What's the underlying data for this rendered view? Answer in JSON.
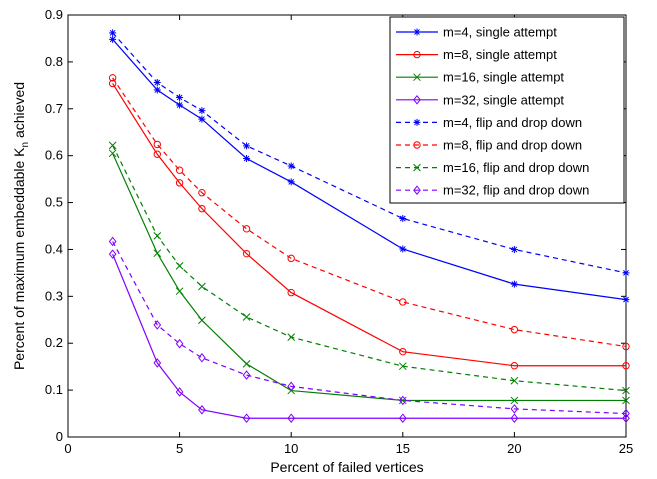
{
  "chart_data": {
    "type": "line",
    "xlabel": "Percent of failed vertices",
    "ylabel": "Percent of maximum embeddable K",
    "ylabel_subscript": "n",
    "ylabel_suffix": " achieved",
    "xlim": [
      0,
      25
    ],
    "ylim": [
      0,
      0.9
    ],
    "xticks": [
      0,
      5,
      10,
      15,
      20,
      25
    ],
    "yticks": [
      0,
      0.1,
      0.2,
      0.3,
      0.4,
      0.5,
      0.6,
      0.7,
      0.8,
      0.9
    ],
    "grid": false,
    "legend_position": "top-right",
    "x": [
      2,
      4,
      5,
      6,
      8,
      10,
      15,
      20,
      25
    ],
    "series": [
      {
        "name": "m=4, single attempt",
        "color": "#0000ff",
        "dash": "solid",
        "marker": "star",
        "values": [
          0.848,
          0.74,
          0.708,
          0.678,
          0.594,
          0.544,
          0.401,
          0.326,
          0.293
        ]
      },
      {
        "name": "m=8, single attempt",
        "color": "#ff0000",
        "dash": "solid",
        "marker": "circle",
        "values": [
          0.754,
          0.603,
          0.542,
          0.487,
          0.391,
          0.308,
          0.182,
          0.152,
          0.152
        ]
      },
      {
        "name": "m=16, single attempt",
        "color": "#008000",
        "dash": "solid",
        "marker": "x",
        "values": [
          0.605,
          0.392,
          0.311,
          0.249,
          0.156,
          0.099,
          0.078,
          0.078,
          0.078
        ]
      },
      {
        "name": "m=32, single attempt",
        "color": "#8000ff",
        "dash": "solid",
        "marker": "diamond",
        "values": [
          0.39,
          0.158,
          0.096,
          0.058,
          0.04,
          0.04,
          0.04,
          0.04,
          0.04
        ]
      },
      {
        "name": "m=4, flip and drop down",
        "color": "#0000ff",
        "dash": "dashed",
        "marker": "star",
        "values": [
          0.862,
          0.756,
          0.724,
          0.696,
          0.621,
          0.578,
          0.466,
          0.4,
          0.35
        ]
      },
      {
        "name": "m=8, flip and drop down",
        "color": "#ff0000",
        "dash": "dashed",
        "marker": "circle",
        "values": [
          0.766,
          0.624,
          0.569,
          0.521,
          0.444,
          0.381,
          0.288,
          0.229,
          0.193
        ]
      },
      {
        "name": "m=16, flip and drop down",
        "color": "#008000",
        "dash": "dashed",
        "marker": "x",
        "values": [
          0.622,
          0.429,
          0.365,
          0.321,
          0.256,
          0.213,
          0.151,
          0.12,
          0.099
        ]
      },
      {
        "name": "m=32, flip and drop down",
        "color": "#8000ff",
        "dash": "dashed",
        "marker": "diamond",
        "values": [
          0.417,
          0.239,
          0.199,
          0.169,
          0.132,
          0.108,
          0.078,
          0.06,
          0.05
        ]
      }
    ]
  }
}
